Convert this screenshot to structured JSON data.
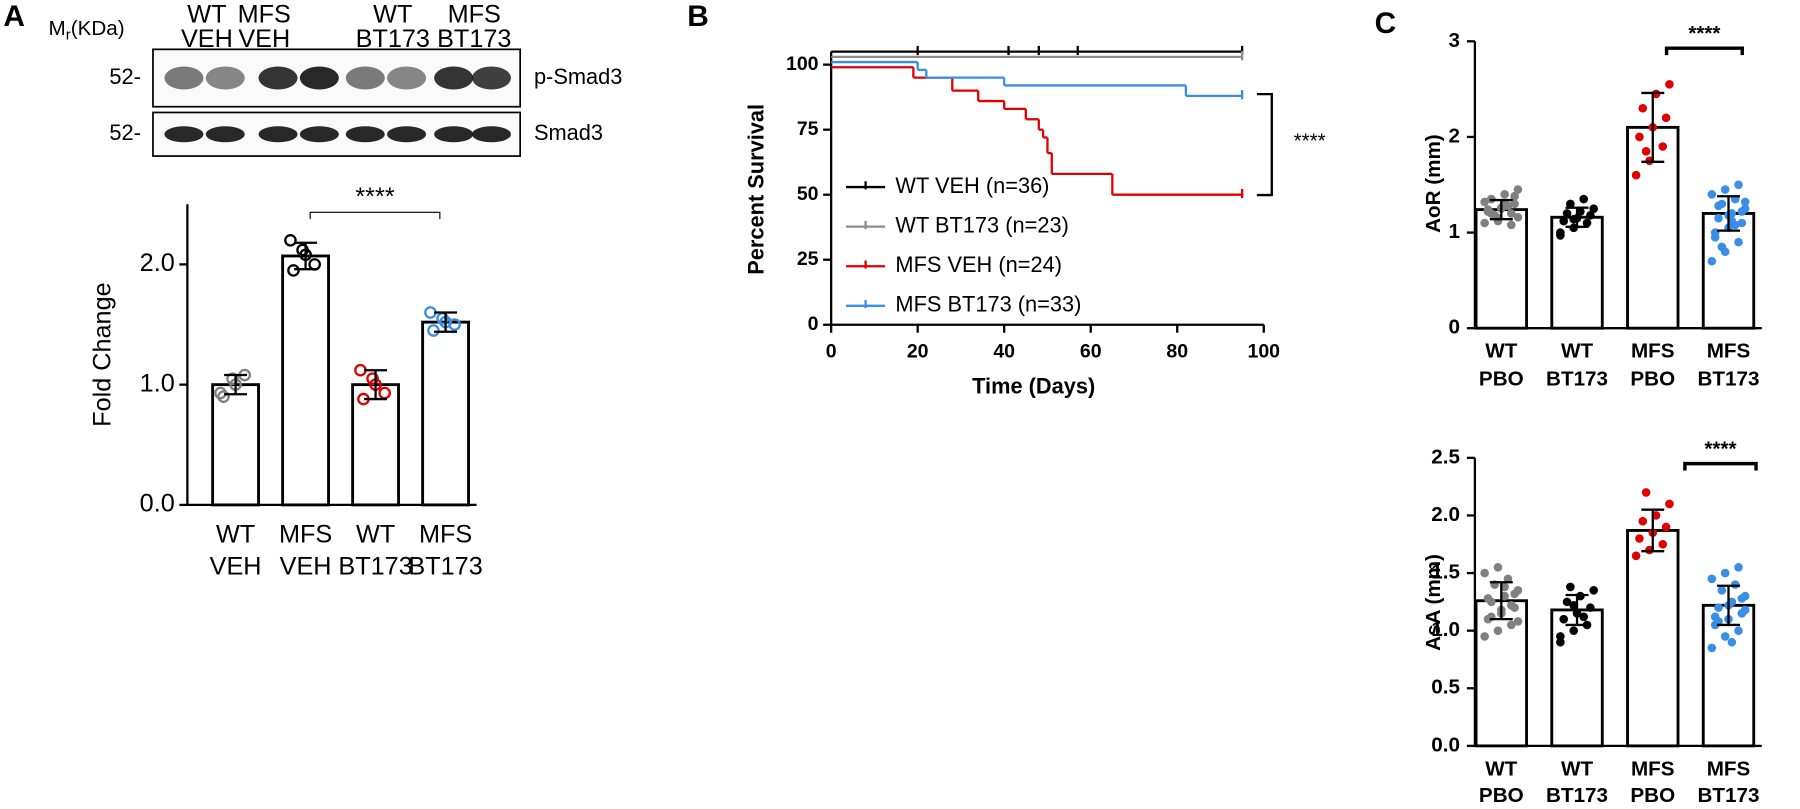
{
  "blot": {
    "mr": [
      "M",
      "r",
      "(KDa)"
    ],
    "lanes": [
      [
        "WT",
        "VEH"
      ],
      [
        "MFS",
        "VEH"
      ],
      [
        "WT",
        "BT173"
      ],
      [
        "MFS",
        "BT173"
      ]
    ],
    "rows": [
      {
        "marker": "52-",
        "label": "p-Smad3"
      },
      {
        "marker": "52-",
        "label": "Smad3"
      }
    ]
  },
  "chart_data": [
    {
      "type": "bar",
      "panel": "A",
      "ylabel": "Fold Change",
      "categories": [
        [
          "WT",
          "VEH"
        ],
        [
          "MFS",
          "VEH"
        ],
        [
          "WT",
          "BT173"
        ],
        [
          "MFS",
          "BT173"
        ]
      ],
      "values": [
        1.0,
        2.07,
        1.0,
        1.52
      ],
      "errors": [
        0.08,
        0.11,
        0.12,
        0.08
      ],
      "points": [
        [
          0.93,
          1.05,
          1.08,
          0.9,
          1.0
        ],
        [
          2.2,
          2.12,
          2.0,
          1.95,
          2.08
        ],
        [
          1.12,
          1.05,
          0.93,
          0.88,
          1.0
        ],
        [
          1.6,
          1.55,
          1.5,
          1.45,
          1.52
        ]
      ],
      "point_colors": [
        "#808080",
        "#000000",
        "#e00000",
        "#3a8ee6"
      ],
      "point_style": "hollow",
      "bar_fill": "#ffffff",
      "bar_edge": "#000000",
      "ylim": [
        0,
        2.5
      ],
      "yticks": [
        {
          "value": 0,
          "label": "0.0"
        },
        {
          "value": 1,
          "label": "1.0"
        },
        {
          "value": 2,
          "label": "2.0"
        }
      ],
      "significance": "****"
    },
    {
      "type": "survival",
      "panel": "B",
      "xlabel": "Time (Days)",
      "ylabel": "Percent Survival",
      "xlim": [
        0,
        100
      ],
      "xticks": [
        0,
        20,
        40,
        60,
        80,
        100
      ],
      "ylim": [
        0,
        105
      ],
      "yticks": [
        0,
        25,
        50,
        75,
        100
      ],
      "series": [
        {
          "name": "WT VEH (n=36)",
          "color": "#000000",
          "x": [
            0,
            95
          ],
          "values": [
            105,
            105
          ],
          "censored": [
            20,
            41,
            48,
            57,
            95
          ]
        },
        {
          "name": "WT BT173 (n=23)",
          "color": "#8c8c8c",
          "x": [
            0,
            95
          ],
          "values": [
            103,
            103
          ],
          "censored": [
            95
          ]
        },
        {
          "name": "MFS VEH (n=24)",
          "color": "#e00000",
          "x": [
            0,
            19,
            28,
            34,
            40,
            45,
            48,
            49,
            50,
            51,
            65,
            95
          ],
          "values": [
            99,
            95,
            90,
            86,
            83,
            79,
            75,
            72,
            66,
            58,
            50,
            50
          ],
          "censored": [
            95
          ]
        },
        {
          "name": "MFS BT173 (n=33)",
          "color": "#3a8ee6",
          "x": [
            0,
            20,
            22,
            40,
            82,
            95
          ],
          "values": [
            101,
            98,
            95,
            92,
            88,
            88
          ],
          "censored": [
            95
          ]
        }
      ],
      "significance": "****"
    },
    {
      "type": "bar",
      "panel": "C",
      "ylabel": "AoR (mm)",
      "categories": [
        [
          "WT",
          "PBO"
        ],
        [
          "WT",
          "BT173"
        ],
        [
          "MFS",
          "PBO"
        ],
        [
          "MFS",
          "BT173"
        ]
      ],
      "values": [
        1.24,
        1.16,
        2.1,
        1.2
      ],
      "errors": [
        0.1,
        0.1,
        0.36,
        0.18
      ],
      "points": [
        [
          1.1,
          1.15,
          1.2,
          1.22,
          1.25,
          1.3,
          1.35,
          1.4,
          1.45,
          1.18,
          1.28,
          1.32,
          1.12,
          1.08,
          1.24,
          1.26,
          1.38,
          1.2,
          1.3,
          1.16
        ],
        [
          1.0,
          1.05,
          1.1,
          1.12,
          1.15,
          1.18,
          1.2,
          1.22,
          1.25,
          1.3,
          1.35,
          0.97,
          1.14
        ],
        [
          1.6,
          1.75,
          1.9,
          2.0,
          2.1,
          2.2,
          2.3,
          2.45,
          2.55,
          1.85
        ],
        [
          0.7,
          0.8,
          0.9,
          1.0,
          1.05,
          1.1,
          1.15,
          1.2,
          1.25,
          1.3,
          1.35,
          1.4,
          1.45,
          1.5,
          0.95,
          1.18,
          1.22,
          1.28,
          1.12,
          1.32,
          0.85,
          1.08
        ]
      ],
      "point_colors": [
        "#808080",
        "#000000",
        "#e00000",
        "#3a8ee6"
      ],
      "point_style": "filled",
      "bar_fill": "#ffffff",
      "bar_edge": "#000000",
      "ylim": [
        0,
        3
      ],
      "yticks": [
        0,
        1,
        2,
        3
      ],
      "significance": "****"
    },
    {
      "type": "bar",
      "ylabel": "AsA (mm)",
      "categories": [
        [
          "WT",
          "PBO"
        ],
        [
          "WT",
          "BT173"
        ],
        [
          "MFS",
          "PBO"
        ],
        [
          "MFS",
          "BT173"
        ]
      ],
      "values": [
        1.26,
        1.18,
        1.87,
        1.22
      ],
      "errors": [
        0.16,
        0.13,
        0.18,
        0.17
      ],
      "points": [
        [
          0.95,
          1.0,
          1.05,
          1.1,
          1.15,
          1.2,
          1.25,
          1.3,
          1.35,
          1.4,
          1.45,
          1.5,
          1.55,
          1.22,
          1.28,
          1.18,
          1.32,
          1.12,
          1.38,
          1.08
        ],
        [
          0.9,
          1.0,
          1.05,
          1.1,
          1.15,
          1.2,
          1.25,
          1.3,
          1.35,
          1.38,
          1.12,
          0.95,
          1.22
        ],
        [
          1.65,
          1.7,
          1.75,
          1.8,
          1.85,
          1.9,
          1.95,
          2.0,
          2.1,
          2.2
        ],
        [
          0.85,
          0.95,
          1.0,
          1.05,
          1.1,
          1.15,
          1.2,
          1.25,
          1.3,
          1.35,
          1.4,
          1.45,
          1.5,
          1.55,
          1.12,
          1.22,
          1.28,
          1.08,
          0.9,
          1.18
        ]
      ],
      "point_colors": [
        "#808080",
        "#000000",
        "#e00000",
        "#3a8ee6"
      ],
      "point_style": "filled",
      "bar_fill": "#ffffff",
      "bar_edge": "#000000",
      "ylim": [
        0,
        2.5
      ],
      "yticks": [
        {
          "value": 0,
          "label": "0.0"
        },
        {
          "value": 0.5,
          "label": "0.5"
        },
        {
          "value": 1,
          "label": "1.0"
        },
        {
          "value": 1.5,
          "label": "1.5"
        },
        {
          "value": 2,
          "label": "2.0"
        },
        {
          "value": 2.5,
          "label": "2.5"
        }
      ],
      "significance": "****"
    }
  ]
}
